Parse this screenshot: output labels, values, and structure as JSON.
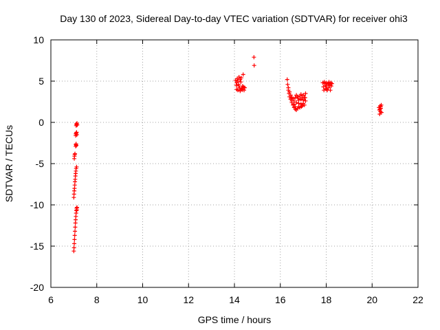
{
  "chart_data": {
    "type": "scatter",
    "title": "Day 130 of 2023, Sidereal Day-to-day VTEC variation (SDTVAR) for receiver ohi3",
    "xlabel": "GPS time / hours",
    "ylabel": "SDTVAR / TECUs",
    "xlim": [
      6,
      22
    ],
    "ylim": [
      -20,
      10
    ],
    "x_ticks": [
      6,
      8,
      10,
      12,
      14,
      16,
      18,
      20,
      22
    ],
    "y_ticks": [
      -20,
      -15,
      -10,
      -5,
      0,
      5,
      10
    ],
    "x_tick_labels": [
      "6",
      "8",
      "10",
      "12",
      "14",
      "16",
      "18",
      "20",
      "22"
    ],
    "y_tick_labels": [
      "-20",
      "-15",
      "-10",
      "-5",
      "0",
      "5",
      "10"
    ],
    "grid": true,
    "marker": "+",
    "color": "#ff0000",
    "series": [
      {
        "name": "SDTVAR",
        "points": [
          [
            7.0,
            -15.6
          ],
          [
            7.01,
            -15.2
          ],
          [
            7.02,
            -14.7
          ],
          [
            7.03,
            -14.2
          ],
          [
            7.04,
            -13.7
          ],
          [
            7.05,
            -13.2
          ],
          [
            7.06,
            -12.7
          ],
          [
            7.07,
            -12.2
          ],
          [
            7.08,
            -11.8
          ],
          [
            7.09,
            -11.4
          ],
          [
            7.1,
            -11.0
          ],
          [
            7.11,
            -10.7
          ],
          [
            7.12,
            -10.4
          ],
          [
            7.13,
            -10.6
          ],
          [
            7.14,
            -10.3
          ],
          [
            7.0,
            -9.1
          ],
          [
            7.01,
            -8.7
          ],
          [
            7.02,
            -8.3
          ],
          [
            7.03,
            -8.0
          ],
          [
            7.04,
            -7.6
          ],
          [
            7.05,
            -7.2
          ],
          [
            7.06,
            -6.9
          ],
          [
            7.07,
            -6.5
          ],
          [
            7.08,
            -6.2
          ],
          [
            7.09,
            -5.9
          ],
          [
            7.1,
            -5.6
          ],
          [
            7.12,
            -5.4
          ],
          [
            7.02,
            -4.4
          ],
          [
            7.03,
            -4.1
          ],
          [
            7.04,
            -3.9
          ],
          [
            7.05,
            -3.8
          ],
          [
            7.08,
            -2.9
          ],
          [
            7.09,
            -2.7
          ],
          [
            7.1,
            -2.6
          ],
          [
            7.11,
            -2.8
          ],
          [
            7.08,
            -1.6
          ],
          [
            7.09,
            -1.4
          ],
          [
            7.1,
            -1.3
          ],
          [
            7.12,
            -1.2
          ],
          [
            7.13,
            -1.5
          ],
          [
            7.1,
            -0.4
          ],
          [
            7.11,
            -0.2
          ],
          [
            7.13,
            -0.3
          ],
          [
            7.14,
            -0.1
          ],
          [
            7.15,
            -0.3
          ],
          [
            14.05,
            5.1
          ],
          [
            14.08,
            4.5
          ],
          [
            14.1,
            4.0
          ],
          [
            14.12,
            5.3
          ],
          [
            14.15,
            3.9
          ],
          [
            14.18,
            4.6
          ],
          [
            14.2,
            5.5
          ],
          [
            14.22,
            4.2
          ],
          [
            14.25,
            3.8
          ],
          [
            14.28,
            4.9
          ],
          [
            14.3,
            5.4
          ],
          [
            14.32,
            4.1
          ],
          [
            14.35,
            4.4
          ],
          [
            14.38,
            5.8
          ],
          [
            14.4,
            4.3
          ],
          [
            14.42,
            3.9
          ],
          [
            14.1,
            4.8
          ],
          [
            14.2,
            4.4
          ],
          [
            14.3,
            4.0
          ],
          [
            14.15,
            5.0
          ],
          [
            14.25,
            5.2
          ],
          [
            14.35,
            3.95
          ],
          [
            14.45,
            4.2
          ],
          [
            14.85,
            7.9
          ],
          [
            14.86,
            6.9
          ],
          [
            16.3,
            5.2
          ],
          [
            16.32,
            4.6
          ],
          [
            16.35,
            3.9
          ],
          [
            16.38,
            3.5
          ],
          [
            16.4,
            3.1
          ],
          [
            16.45,
            2.8
          ],
          [
            16.5,
            2.4
          ],
          [
            16.55,
            2.1
          ],
          [
            16.6,
            1.8
          ],
          [
            16.65,
            1.6
          ],
          [
            16.7,
            1.5
          ],
          [
            16.75,
            1.7
          ],
          [
            16.8,
            1.9
          ],
          [
            16.85,
            1.8
          ],
          [
            16.9,
            2.2
          ],
          [
            16.95,
            2.0
          ],
          [
            17.0,
            2.3
          ],
          [
            17.05,
            2.1
          ],
          [
            17.1,
            2.6
          ],
          [
            16.45,
            3.3
          ],
          [
            16.5,
            3.0
          ],
          [
            16.55,
            2.9
          ],
          [
            16.6,
            2.6
          ],
          [
            16.65,
            3.0
          ],
          [
            16.7,
            3.3
          ],
          [
            16.75,
            3.1
          ],
          [
            16.8,
            2.7
          ],
          [
            16.85,
            3.2
          ],
          [
            16.9,
            3.4
          ],
          [
            16.95,
            3.0
          ],
          [
            17.0,
            3.3
          ],
          [
            17.05,
            3.0
          ],
          [
            17.1,
            3.5
          ],
          [
            16.6,
            2.2
          ],
          [
            16.7,
            2.4
          ],
          [
            16.8,
            2.3
          ],
          [
            16.9,
            2.8
          ],
          [
            17.0,
            2.7
          ],
          [
            16.35,
            4.2
          ],
          [
            16.4,
            3.7
          ],
          [
            16.5,
            2.6
          ],
          [
            16.65,
            1.9
          ],
          [
            16.78,
            2.9
          ],
          [
            16.92,
            1.9
          ],
          [
            17.08,
            3.0
          ],
          [
            17.85,
            4.8
          ],
          [
            17.88,
            4.3
          ],
          [
            17.9,
            3.9
          ],
          [
            17.92,
            4.9
          ],
          [
            17.95,
            4.5
          ],
          [
            17.98,
            4.1
          ],
          [
            18.0,
            4.8
          ],
          [
            18.02,
            4.4
          ],
          [
            18.05,
            3.9
          ],
          [
            18.08,
            4.7
          ],
          [
            18.1,
            4.2
          ],
          [
            18.12,
            4.9
          ],
          [
            18.15,
            4.5
          ],
          [
            18.18,
            3.9
          ],
          [
            18.2,
            4.8
          ],
          [
            18.22,
            4.4
          ],
          [
            18.25,
            4.7
          ],
          [
            18.0,
            4.0
          ],
          [
            18.1,
            4.6
          ],
          [
            17.95,
            4.7
          ],
          [
            20.3,
            1.8
          ],
          [
            20.32,
            1.5
          ],
          [
            20.33,
            1.0
          ],
          [
            20.35,
            2.0
          ],
          [
            20.36,
            1.3
          ],
          [
            20.38,
            1.7
          ],
          [
            20.4,
            2.1
          ],
          [
            20.41,
            1.2
          ],
          [
            20.38,
            1.9
          ],
          [
            20.34,
            1.6
          ]
        ]
      }
    ]
  }
}
